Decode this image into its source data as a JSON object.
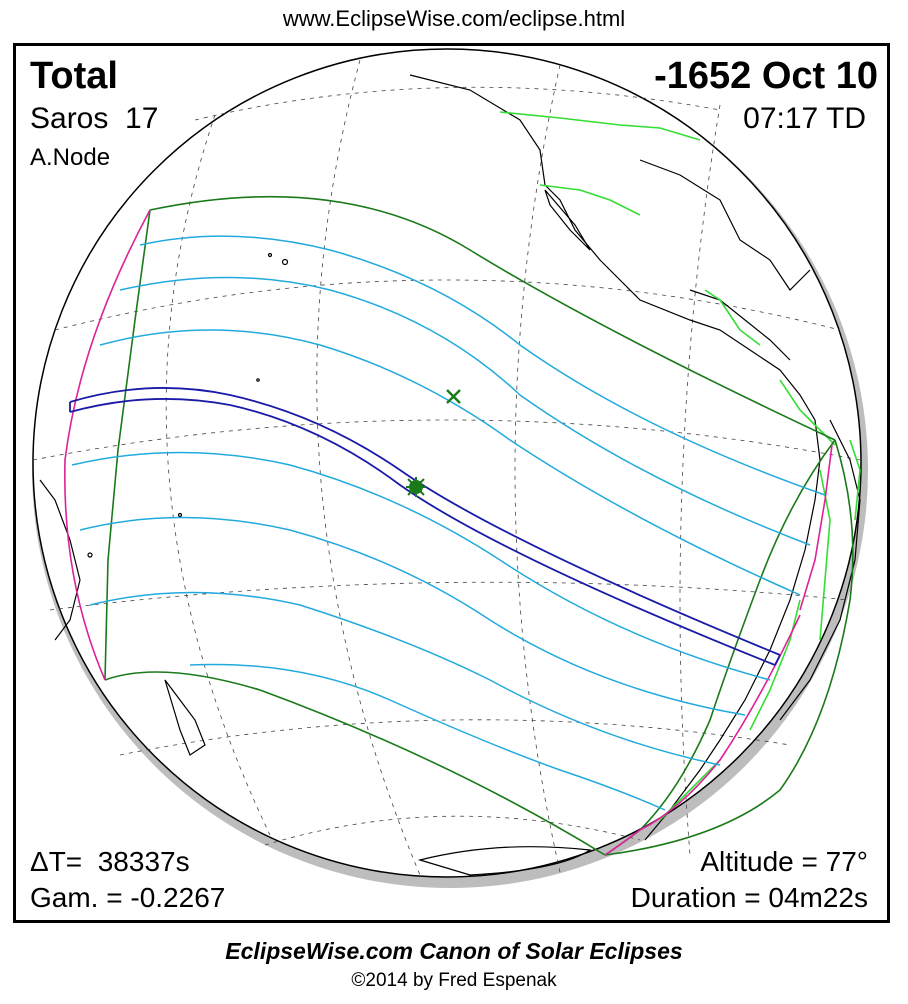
{
  "header": {
    "url": "www.EclipseWise.com/eclipse.html"
  },
  "eclipse": {
    "type": "Total",
    "date": "-1652 Oct 10",
    "saros_label": "Saros",
    "saros_number": "17",
    "time": "07:17 TD",
    "node": "A.Node",
    "delta_t_label": "ΔT=",
    "delta_t": "38337s",
    "gamma_label": "Gam. =",
    "gamma": "-0.2267",
    "altitude_label": "Altitude =",
    "altitude": "77°",
    "duration_label": "Duration =",
    "duration": "04m22s"
  },
  "footer": {
    "canon": "EclipseWise.com Canon of Solar Eclipses",
    "copyright": "©2014 by Fred Espenak"
  },
  "colors": {
    "penumbra_limit": "#1a7a1a",
    "umbra_path": "#1a1aa8",
    "time_lines": "#22aadd",
    "rise_set": "#dd2299",
    "political_borders": "#33dd33",
    "coastlines": "#000000"
  }
}
